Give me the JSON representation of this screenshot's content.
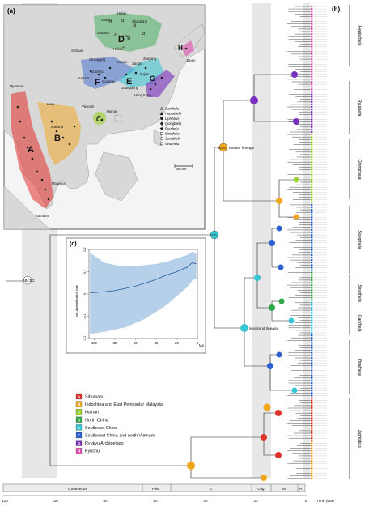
{
  "panel_labels": {
    "a": "(a)",
    "b": "(b)",
    "c": "(c)"
  },
  "map": {
    "region_letters": [
      "A",
      "B",
      "C",
      "D",
      "E",
      "F",
      "G",
      "H"
    ],
    "places": [
      {
        "name": "Shanxi"
      },
      {
        "name": "Hebei"
      },
      {
        "name": "Shandong"
      },
      {
        "name": "Shaanxi"
      },
      {
        "name": "Henan"
      },
      {
        "name": "Hubei"
      },
      {
        "name": "Sichuan"
      },
      {
        "name": "Chongqing"
      },
      {
        "name": "Hunan"
      },
      {
        "name": "Jiangxi"
      },
      {
        "name": "Zhejiang"
      },
      {
        "name": "Guizhou"
      },
      {
        "name": "Fujian"
      },
      {
        "name": "Yunnan"
      },
      {
        "name": "Guangxi"
      },
      {
        "name": "Guangdong"
      },
      {
        "name": "Hong Kong"
      },
      {
        "name": "Myanmar"
      },
      {
        "name": "Laos"
      },
      {
        "name": "Vietnam"
      },
      {
        "name": "Hainan"
      },
      {
        "name": "Thailand"
      },
      {
        "name": "Japan"
      },
      {
        "name": "Malaysia"
      },
      {
        "name": "Sumatra"
      }
    ],
    "scale_label": "500 km",
    "genus_legend": [
      "Ganthela",
      "Heptathela",
      "Liphistius",
      "Qiongthela",
      "Ryuthela",
      "Sinothela",
      "Songthela",
      "Vinathela"
    ]
  },
  "ltt": {
    "ylabel": "net–diversification rate",
    "xlabel": "Ma",
    "x_ticks": [
      "100",
      "80",
      "60",
      "40",
      "20",
      "0"
    ],
    "y_ticks": [
      "0.2",
      "0.1",
      "0",
      "-0.1",
      "-0.2"
    ],
    "xlim": [
      105,
      0
    ],
    "ylim": [
      -0.2,
      0.2
    ],
    "mean": [
      [
        104,
        0.005
      ],
      [
        90,
        0.01
      ],
      [
        80,
        0.015
      ],
      [
        70,
        0.025
      ],
      [
        60,
        0.035
      ],
      [
        50,
        0.05
      ],
      [
        40,
        0.065
      ],
      [
        30,
        0.085
      ],
      [
        20,
        0.1
      ],
      [
        10,
        0.12
      ],
      [
        5,
        0.14
      ],
      [
        1,
        0.135
      ]
    ],
    "upper": [
      [
        104,
        0.185
      ],
      [
        90,
        0.14
      ],
      [
        80,
        0.13
      ],
      [
        70,
        0.125
      ],
      [
        60,
        0.125
      ],
      [
        50,
        0.13
      ],
      [
        40,
        0.135
      ],
      [
        30,
        0.145
      ],
      [
        20,
        0.16
      ],
      [
        10,
        0.175
      ],
      [
        5,
        0.19
      ],
      [
        1,
        0.18
      ]
    ],
    "lower": [
      [
        104,
        -0.18
      ],
      [
        90,
        -0.17
      ],
      [
        80,
        -0.16
      ],
      [
        70,
        -0.15
      ],
      [
        60,
        -0.13
      ],
      [
        50,
        -0.11
      ],
      [
        40,
        -0.08
      ],
      [
        30,
        -0.05
      ],
      [
        20,
        -0.01
      ],
      [
        10,
        0.03
      ],
      [
        5,
        0.06
      ],
      [
        1,
        0.07
      ]
    ]
  },
  "legend": [
    {
      "code": "A",
      "label": "Sibumasu",
      "color": "#e0302a"
    },
    {
      "code": "B",
      "label": "Indochina and East Peninsular Malaysia",
      "color": "#f1a51b"
    },
    {
      "code": "C",
      "label": "Hainan",
      "color": "#9bd32c"
    },
    {
      "code": "D",
      "label": "North China",
      "color": "#2ea84a"
    },
    {
      "code": "E",
      "label": "Southeast China",
      "color": "#36c6d3"
    },
    {
      "code": "F",
      "label": "Southwest China and north Vietnam",
      "color": "#2c5fd0"
    },
    {
      "code": "G",
      "label": "Ryukyu Archipelago",
      "color": "#7a2fc0"
    },
    {
      "code": "H",
      "label": "Kyushu",
      "color": "#e04fb0"
    }
  ],
  "tree": {
    "node_labels": {
      "root": "ABCEG",
      "insular": "BCEG",
      "mainland_root": "BCEG"
    },
    "lineages": {
      "insular": "Insular lineage",
      "mainland": "Mainland lineage"
    },
    "clades": [
      "Heptathela",
      "Ryuthela",
      "Qiongthela",
      "Songthela",
      "Sinothela",
      "Ganthela",
      "Vinathela",
      "Liphistius"
    ]
  },
  "timescale": {
    "periods": [
      "Cretaceous",
      "Pale.",
      "E.",
      "Olig.",
      "Mi.",
      "Pl."
    ],
    "ticks": [
      "120",
      "100",
      "80",
      "60",
      "40",
      "20",
      "0"
    ],
    "unit_label": "Time (Ma)"
  }
}
